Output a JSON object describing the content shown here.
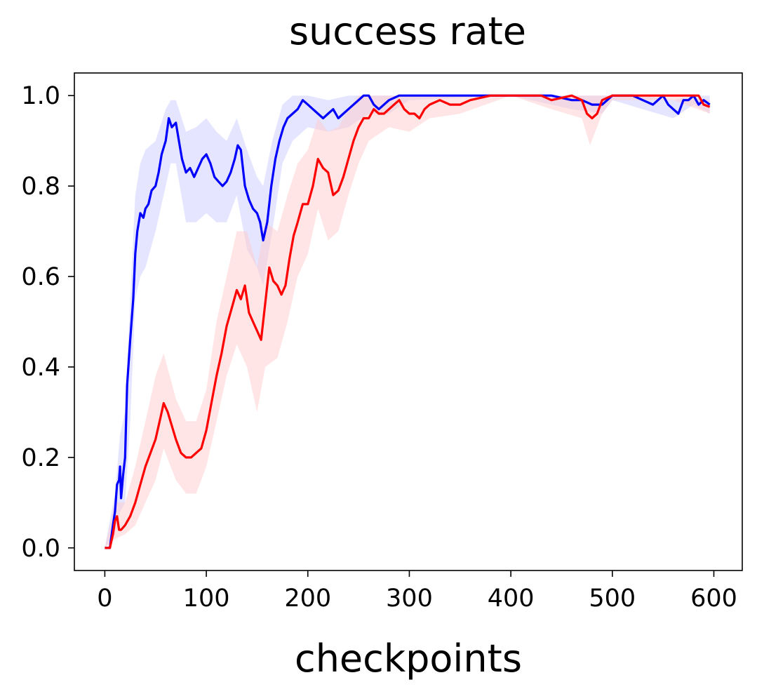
{
  "chart_data": {
    "type": "line",
    "title": "success rate",
    "xlabel": "checkpoints",
    "ylabel": "",
    "xlim": [
      -30,
      628
    ],
    "ylim": [
      -0.05,
      1.05
    ],
    "xticks": [
      0,
      100,
      200,
      300,
      400,
      500,
      600
    ],
    "yticks": [
      0.0,
      0.2,
      0.4,
      0.6,
      0.8,
      1.0
    ],
    "grid": false,
    "series": [
      {
        "color": "#0000ff",
        "band_color": "#ccccff",
        "points": [
          [
            0,
            0.0
          ],
          [
            5,
            0.0
          ],
          [
            8,
            0.05
          ],
          [
            10,
            0.08
          ],
          [
            12,
            0.14
          ],
          [
            14,
            0.15
          ],
          [
            15,
            0.18
          ],
          [
            16,
            0.11
          ],
          [
            18,
            0.16
          ],
          [
            20,
            0.2
          ],
          [
            22,
            0.36
          ],
          [
            25,
            0.46
          ],
          [
            28,
            0.55
          ],
          [
            30,
            0.65
          ],
          [
            32,
            0.7
          ],
          [
            35,
            0.74
          ],
          [
            38,
            0.73
          ],
          [
            40,
            0.75
          ],
          [
            43,
            0.76
          ],
          [
            46,
            0.79
          ],
          [
            50,
            0.8
          ],
          [
            53,
            0.83
          ],
          [
            56,
            0.87
          ],
          [
            60,
            0.9
          ],
          [
            63,
            0.95
          ],
          [
            66,
            0.93
          ],
          [
            70,
            0.94
          ],
          [
            73,
            0.9
          ],
          [
            76,
            0.86
          ],
          [
            80,
            0.83
          ],
          [
            84,
            0.84
          ],
          [
            88,
            0.82
          ],
          [
            92,
            0.84
          ],
          [
            96,
            0.86
          ],
          [
            100,
            0.87
          ],
          [
            104,
            0.85
          ],
          [
            108,
            0.82
          ],
          [
            112,
            0.81
          ],
          [
            116,
            0.8
          ],
          [
            120,
            0.81
          ],
          [
            124,
            0.83
          ],
          [
            128,
            0.86
          ],
          [
            131,
            0.89
          ],
          [
            134,
            0.88
          ],
          [
            138,
            0.8
          ],
          [
            142,
            0.77
          ],
          [
            146,
            0.75
          ],
          [
            150,
            0.74
          ],
          [
            153,
            0.72
          ],
          [
            156,
            0.68
          ],
          [
            160,
            0.72
          ],
          [
            164,
            0.8
          ],
          [
            168,
            0.86
          ],
          [
            172,
            0.9
          ],
          [
            176,
            0.93
          ],
          [
            180,
            0.95
          ],
          [
            185,
            0.96
          ],
          [
            190,
            0.97
          ],
          [
            195,
            0.99
          ],
          [
            200,
            0.98
          ],
          [
            205,
            0.97
          ],
          [
            210,
            0.96
          ],
          [
            215,
            0.95
          ],
          [
            220,
            0.96
          ],
          [
            225,
            0.97
          ],
          [
            230,
            0.95
          ],
          [
            235,
            0.96
          ],
          [
            240,
            0.97
          ],
          [
            245,
            0.98
          ],
          [
            250,
            0.99
          ],
          [
            255,
            1.0
          ],
          [
            260,
            1.0
          ],
          [
            265,
            0.98
          ],
          [
            270,
            0.97
          ],
          [
            275,
            0.98
          ],
          [
            280,
            0.99
          ],
          [
            290,
            1.0
          ],
          [
            300,
            1.0
          ],
          [
            320,
            1.0
          ],
          [
            350,
            1.0
          ],
          [
            380,
            1.0
          ],
          [
            400,
            1.0
          ],
          [
            420,
            1.0
          ],
          [
            440,
            1.0
          ],
          [
            460,
            0.99
          ],
          [
            470,
            0.99
          ],
          [
            480,
            0.98
          ],
          [
            490,
            0.98
          ],
          [
            500,
            1.0
          ],
          [
            520,
            1.0
          ],
          [
            530,
            0.99
          ],
          [
            540,
            0.98
          ],
          [
            550,
            1.0
          ],
          [
            555,
            0.98
          ],
          [
            560,
            0.97
          ],
          [
            565,
            0.96
          ],
          [
            570,
            0.99
          ],
          [
            575,
            0.99
          ],
          [
            580,
            1.0
          ],
          [
            585,
            0.98
          ],
          [
            590,
            0.99
          ],
          [
            596,
            0.98
          ]
        ],
        "band": [
          [
            0,
            0.0,
            0.0
          ],
          [
            10,
            0.03,
            0.12
          ],
          [
            15,
            0.08,
            0.25
          ],
          [
            20,
            0.1,
            0.3
          ],
          [
            25,
            0.28,
            0.55
          ],
          [
            30,
            0.55,
            0.78
          ],
          [
            35,
            0.6,
            0.85
          ],
          [
            40,
            0.62,
            0.88
          ],
          [
            50,
            0.7,
            0.9
          ],
          [
            60,
            0.8,
            0.97
          ],
          [
            65,
            0.85,
            0.99
          ],
          [
            70,
            0.85,
            0.99
          ],
          [
            80,
            0.72,
            0.92
          ],
          [
            90,
            0.72,
            0.93
          ],
          [
            100,
            0.74,
            0.95
          ],
          [
            110,
            0.72,
            0.92
          ],
          [
            120,
            0.72,
            0.9
          ],
          [
            130,
            0.78,
            0.95
          ],
          [
            140,
            0.66,
            0.88
          ],
          [
            150,
            0.62,
            0.82
          ],
          [
            156,
            0.58,
            0.8
          ],
          [
            165,
            0.7,
            0.9
          ],
          [
            175,
            0.85,
            0.98
          ],
          [
            185,
            0.9,
            1.0
          ],
          [
            200,
            0.93,
            1.0
          ],
          [
            220,
            0.92,
            0.99
          ],
          [
            240,
            0.93,
            1.0
          ],
          [
            260,
            0.96,
            1.0
          ],
          [
            280,
            0.96,
            1.0
          ],
          [
            300,
            0.99,
            1.0
          ],
          [
            400,
            1.0,
            1.0
          ],
          [
            460,
            0.97,
            1.0
          ],
          [
            490,
            0.96,
            1.0
          ],
          [
            500,
            0.99,
            1.0
          ],
          [
            530,
            0.97,
            1.0
          ],
          [
            560,
            0.95,
            0.99
          ],
          [
            580,
            0.98,
            1.0
          ],
          [
            596,
            0.96,
            1.0
          ]
        ]
      },
      {
        "color": "#ff0000",
        "band_color": "#ffcccc",
        "points": [
          [
            0,
            0.0
          ],
          [
            5,
            0.0
          ],
          [
            8,
            0.03
          ],
          [
            10,
            0.06
          ],
          [
            12,
            0.07
          ],
          [
            14,
            0.04
          ],
          [
            16,
            0.04
          ],
          [
            20,
            0.05
          ],
          [
            25,
            0.07
          ],
          [
            30,
            0.1
          ],
          [
            35,
            0.14
          ],
          [
            40,
            0.18
          ],
          [
            45,
            0.21
          ],
          [
            50,
            0.24
          ],
          [
            55,
            0.29
          ],
          [
            58,
            0.32
          ],
          [
            62,
            0.3
          ],
          [
            66,
            0.27
          ],
          [
            70,
            0.24
          ],
          [
            75,
            0.21
          ],
          [
            80,
            0.2
          ],
          [
            85,
            0.2
          ],
          [
            90,
            0.21
          ],
          [
            95,
            0.22
          ],
          [
            100,
            0.26
          ],
          [
            105,
            0.32
          ],
          [
            110,
            0.38
          ],
          [
            115,
            0.43
          ],
          [
            120,
            0.49
          ],
          [
            125,
            0.53
          ],
          [
            130,
            0.57
          ],
          [
            134,
            0.55
          ],
          [
            138,
            0.58
          ],
          [
            142,
            0.52
          ],
          [
            146,
            0.5
          ],
          [
            150,
            0.48
          ],
          [
            154,
            0.46
          ],
          [
            158,
            0.54
          ],
          [
            162,
            0.62
          ],
          [
            166,
            0.59
          ],
          [
            170,
            0.58
          ],
          [
            174,
            0.56
          ],
          [
            178,
            0.58
          ],
          [
            182,
            0.64
          ],
          [
            186,
            0.69
          ],
          [
            190,
            0.72
          ],
          [
            195,
            0.76
          ],
          [
            200,
            0.76
          ],
          [
            205,
            0.8
          ],
          [
            210,
            0.86
          ],
          [
            215,
            0.84
          ],
          [
            220,
            0.83
          ],
          [
            225,
            0.78
          ],
          [
            230,
            0.79
          ],
          [
            235,
            0.82
          ],
          [
            240,
            0.86
          ],
          [
            245,
            0.9
          ],
          [
            250,
            0.93
          ],
          [
            255,
            0.95
          ],
          [
            260,
            0.95
          ],
          [
            265,
            0.97
          ],
          [
            270,
            0.96
          ],
          [
            275,
            0.96
          ],
          [
            280,
            0.97
          ],
          [
            285,
            0.98
          ],
          [
            290,
            0.99
          ],
          [
            295,
            0.97
          ],
          [
            300,
            0.96
          ],
          [
            305,
            0.96
          ],
          [
            310,
            0.95
          ],
          [
            315,
            0.97
          ],
          [
            320,
            0.98
          ],
          [
            330,
            0.99
          ],
          [
            340,
            0.98
          ],
          [
            350,
            0.98
          ],
          [
            360,
            0.99
          ],
          [
            380,
            1.0
          ],
          [
            400,
            1.0
          ],
          [
            420,
            1.0
          ],
          [
            430,
            1.0
          ],
          [
            440,
            0.99
          ],
          [
            460,
            1.0
          ],
          [
            470,
            0.99
          ],
          [
            475,
            0.96
          ],
          [
            480,
            0.95
          ],
          [
            485,
            0.96
          ],
          [
            490,
            0.99
          ],
          [
            500,
            1.0
          ],
          [
            520,
            1.0
          ],
          [
            540,
            1.0
          ],
          [
            560,
            1.0
          ],
          [
            570,
            1.0
          ],
          [
            580,
            1.0
          ],
          [
            585,
            1.0
          ],
          [
            590,
            0.98
          ],
          [
            596,
            0.975
          ]
        ],
        "band": [
          [
            0,
            0.0,
            0.0
          ],
          [
            10,
            0.02,
            0.1
          ],
          [
            20,
            0.03,
            0.1
          ],
          [
            30,
            0.05,
            0.18
          ],
          [
            40,
            0.1,
            0.28
          ],
          [
            50,
            0.15,
            0.38
          ],
          [
            58,
            0.22,
            0.43
          ],
          [
            70,
            0.15,
            0.33
          ],
          [
            80,
            0.12,
            0.28
          ],
          [
            90,
            0.12,
            0.28
          ],
          [
            100,
            0.18,
            0.35
          ],
          [
            110,
            0.28,
            0.5
          ],
          [
            120,
            0.38,
            0.6
          ],
          [
            130,
            0.45,
            0.7
          ],
          [
            140,
            0.4,
            0.7
          ],
          [
            150,
            0.3,
            0.62
          ],
          [
            158,
            0.4,
            0.72
          ],
          [
            170,
            0.42,
            0.7
          ],
          [
            180,
            0.5,
            0.78
          ],
          [
            190,
            0.6,
            0.85
          ],
          [
            200,
            0.65,
            0.88
          ],
          [
            210,
            0.75,
            0.95
          ],
          [
            220,
            0.68,
            0.92
          ],
          [
            230,
            0.7,
            0.93
          ],
          [
            240,
            0.78,
            0.97
          ],
          [
            250,
            0.85,
            1.0
          ],
          [
            260,
            0.9,
            1.0
          ],
          [
            280,
            0.93,
            1.0
          ],
          [
            300,
            0.92,
            1.0
          ],
          [
            320,
            0.95,
            1.0
          ],
          [
            350,
            0.96,
            1.0
          ],
          [
            400,
            1.0,
            1.0
          ],
          [
            440,
            0.97,
            1.0
          ],
          [
            470,
            0.95,
            1.0
          ],
          [
            478,
            0.89,
            1.0
          ],
          [
            490,
            0.96,
            1.0
          ],
          [
            500,
            0.99,
            1.0
          ],
          [
            560,
            0.99,
            1.0
          ],
          [
            596,
            0.96,
            0.99
          ]
        ]
      }
    ]
  }
}
